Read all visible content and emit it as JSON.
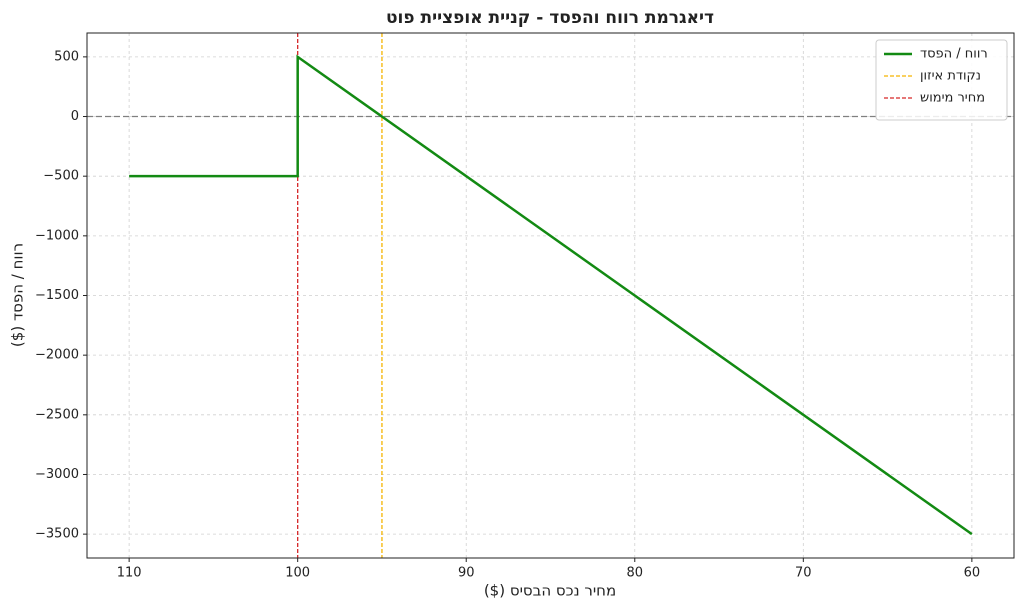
{
  "chart_data": {
    "type": "line",
    "title": "דיאגרמת רווח והפסד - קניית אופציית פוט",
    "x_label": "מחיר נכס הבסיס ($)",
    "y_label": "רווח / הפסד ($)",
    "series": [
      {
        "name": "רווח / הפסד",
        "color": "#138a13",
        "x": [
          110,
          100,
          100,
          60
        ],
        "values": [
          -500,
          -500,
          500,
          -3500
        ]
      }
    ],
    "vlines": [
      {
        "name": "נקודת איזון",
        "x": 95,
        "color": "#f5b400"
      },
      {
        "name": "מחיר מימוש",
        "x": 100,
        "color": "#d62728"
      }
    ],
    "hline": {
      "y": 0,
      "color": "#808080"
    },
    "xlim": [
      112.5,
      57.5
    ],
    "xticks": [
      110,
      100,
      90,
      80,
      70,
      60
    ],
    "ylim": [
      -3700,
      700
    ],
    "yticks": [
      500,
      0,
      {
        "value": -500,
        "label": "−500"
      },
      {
        "value": -1000,
        "label": "−1000"
      },
      {
        "value": -1500,
        "label": "−1500"
      },
      {
        "value": -2000,
        "label": "−2000"
      },
      {
        "value": -2500,
        "label": "−2500"
      },
      {
        "value": -3000,
        "label": "−3000"
      },
      {
        "value": -3500,
        "label": "−3500"
      }
    ],
    "grid": true,
    "legend": "upper right"
  }
}
